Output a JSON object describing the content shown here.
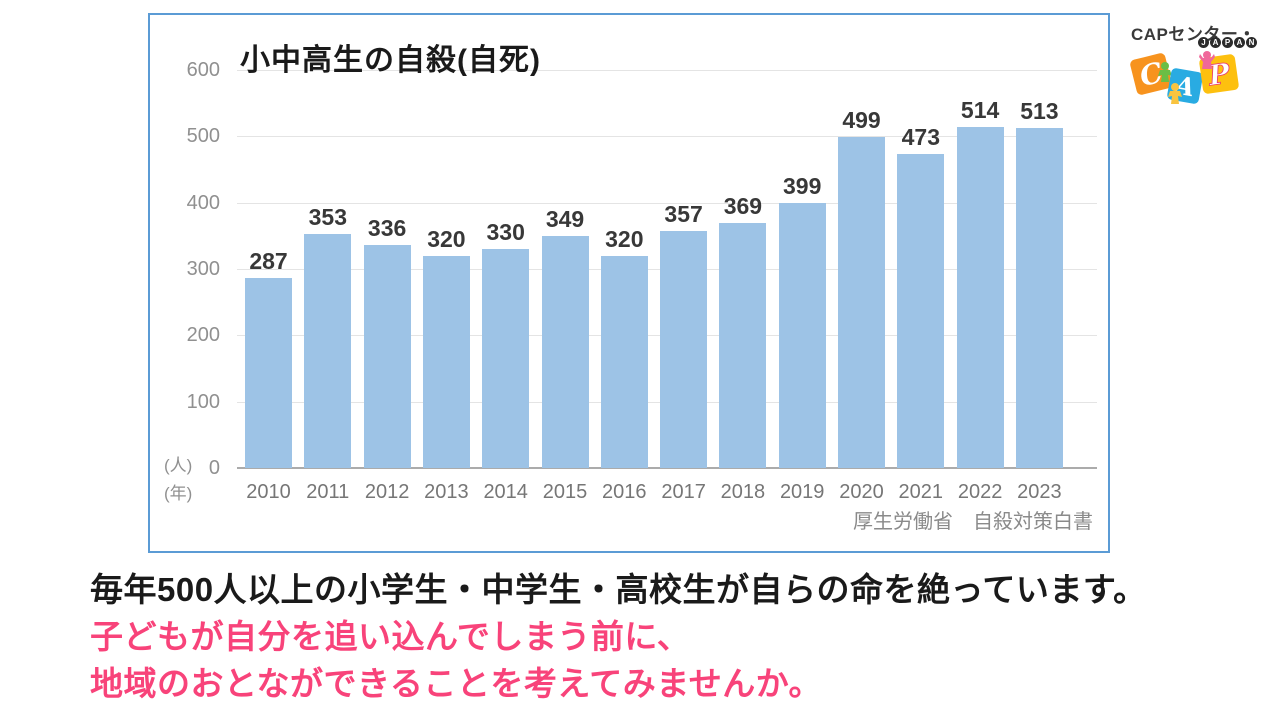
{
  "logo": {
    "name": "CAPセンター・",
    "japan": "JAPAN",
    "letters": [
      "C",
      "A",
      "P"
    ],
    "colors": {
      "c_square": "#F7931E",
      "a_square": "#29ABE2",
      "p_square": "#FDC00F",
      "p_outline": "#E8336D",
      "figure_green": "#6BBE45",
      "figure_yellow": "#F9C440",
      "figure_pink": "#F0679A",
      "badge": "#2B2B2B"
    }
  },
  "chart": {
    "title": "小中高生の自殺(自死)",
    "y_unit": "(人)",
    "x_unit": "(年)",
    "source": "厚生労働省　自殺対策白書",
    "colors": {
      "bar": "#9DC3E6",
      "card_border": "#5B9BD5",
      "gridline": "#E4E4E4",
      "axis_line": "#ABABAB",
      "tick_text": "#909090",
      "value_text": "#383838",
      "year_text": "#767676",
      "source_text": "#8A8A8A"
    }
  },
  "caption": {
    "line1": "毎年500人以上の小学生・中学生・高校生が自らの命を絶っています。",
    "line2": "子どもが自分を追い込んでしまう前に、",
    "line3": "地域のおとなができることを考えてみませんか。",
    "line1_color": "#1A1A1A",
    "highlight_color": "#F8437A"
  },
  "chart_data": {
    "type": "bar",
    "title": "小中高生の自殺(自死)",
    "categories": [
      "2010",
      "2011",
      "2012",
      "2013",
      "2014",
      "2015",
      "2016",
      "2017",
      "2018",
      "2019",
      "2020",
      "2021",
      "2022",
      "2023"
    ],
    "values": [
      287,
      353,
      336,
      320,
      330,
      349,
      320,
      357,
      369,
      399,
      499,
      473,
      514,
      513
    ],
    "xlabel": "(年)",
    "ylabel": "(人)",
    "ylim": [
      0,
      600
    ],
    "yticks": [
      0,
      100,
      200,
      300,
      400,
      500,
      600
    ],
    "grid": true,
    "legend": "none",
    "bar_color": "#9DC3E6",
    "source": "厚生労働省　自殺対策白書"
  }
}
